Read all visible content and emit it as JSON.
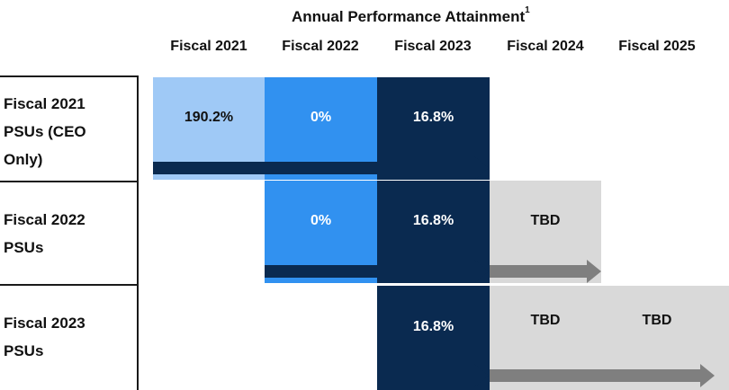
{
  "title": "Annual Performance Attainment",
  "title_footnote": "1",
  "fiscal_years": [
    "Fiscal 2021",
    "Fiscal 2022",
    "Fiscal 2023",
    "Fiscal 2024",
    "Fiscal 2025"
  ],
  "rows": [
    {
      "label_lines": [
        "Fiscal 2021",
        "PSUs (CEO",
        "Only)"
      ],
      "cells": [
        "190.2%",
        "0%",
        "16.8%"
      ]
    },
    {
      "label_lines": [
        "Fiscal 2022",
        "PSUs"
      ],
      "cells": [
        "0%",
        "16.8%",
        "TBD"
      ]
    },
    {
      "label_lines": [
        "Fiscal 2023",
        "PSUs"
      ],
      "cells": [
        "16.8%",
        "TBD",
        "TBD"
      ]
    }
  ],
  "colors": {
    "light_blue": "#9fc9f6",
    "medium_blue": "#3191f0",
    "dark_navy": "#0a2a50",
    "tbd_gray": "#d9d9d9",
    "arrow_navy": "#0a2a50",
    "arrow_gray": "#7f7f7f"
  }
}
